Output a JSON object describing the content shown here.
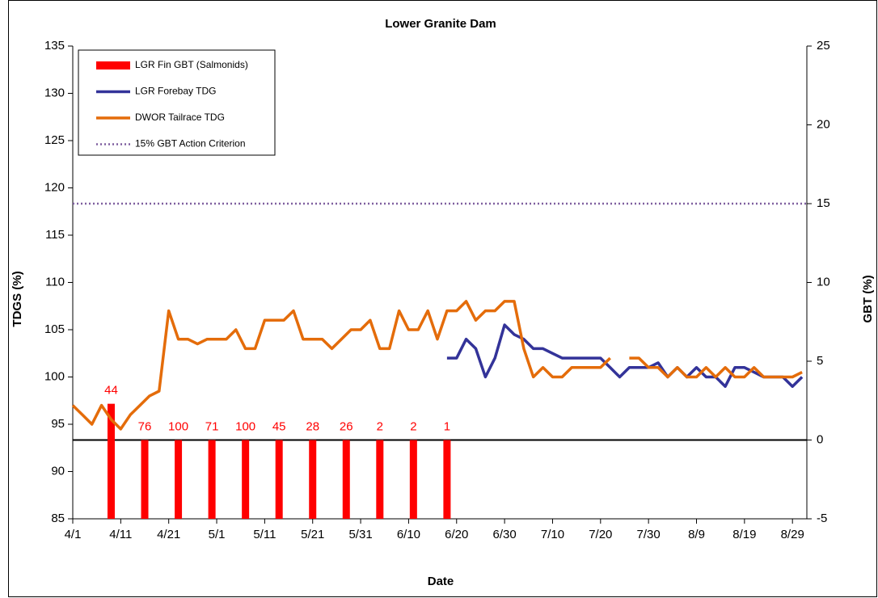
{
  "chart_data": {
    "type": "line",
    "title": "Lower Granite Dam",
    "xlabel": "Date",
    "ylabel": "TDGS (%)",
    "y2label": "GBT (%)",
    "x": [
      "4/1",
      "4/3",
      "4/5",
      "4/7",
      "4/9",
      "4/11",
      "4/13",
      "4/15",
      "4/17",
      "4/19",
      "4/21",
      "4/23",
      "4/25",
      "4/27",
      "4/29",
      "5/1",
      "5/3",
      "5/5",
      "5/7",
      "5/9",
      "5/11",
      "5/13",
      "5/15",
      "5/17",
      "5/19",
      "5/21",
      "5/23",
      "5/25",
      "5/27",
      "5/29",
      "5/31",
      "6/2",
      "6/4",
      "6/6",
      "6/8",
      "6/10",
      "6/12",
      "6/14",
      "6/16",
      "6/18",
      "6/20",
      "6/22",
      "6/24",
      "6/26",
      "6/28",
      "6/30",
      "7/2",
      "7/4",
      "7/6",
      "7/8",
      "7/10",
      "7/12",
      "7/14",
      "7/16",
      "7/18",
      "7/20",
      "7/22",
      "7/24",
      "7/26",
      "7/28",
      "7/30",
      "8/1",
      "8/3",
      "8/5",
      "8/7",
      "8/9",
      "8/11",
      "8/13",
      "8/15",
      "8/17",
      "8/19",
      "8/21",
      "8/23",
      "8/25",
      "8/27",
      "8/29",
      "8/31"
    ],
    "xlim": [
      "4/1",
      "9/1"
    ],
    "xticks": [
      "4/1",
      "4/11",
      "4/21",
      "5/1",
      "5/11",
      "5/21",
      "5/31",
      "6/10",
      "6/20",
      "6/30",
      "7/10",
      "7/20",
      "7/30",
      "8/9",
      "8/19",
      "8/29"
    ],
    "ylim": [
      85,
      135
    ],
    "yticks": [
      85,
      90,
      95,
      100,
      105,
      110,
      115,
      120,
      125,
      130,
      135
    ],
    "y2lim": [
      -5,
      25
    ],
    "y2ticks": [
      -5,
      0,
      5,
      10,
      15,
      20,
      25
    ],
    "legend": "upper left",
    "series": [
      {
        "name": "LGR Fin GBT (Salmonids)",
        "type": "bar",
        "axis": "y2",
        "color": "#ff0000",
        "x": [
          "4/9",
          "4/16",
          "4/23",
          "4/30",
          "5/7",
          "5/14",
          "5/21",
          "5/28",
          "6/4",
          "6/11",
          "6/18"
        ],
        "values": [
          2.3,
          0,
          0,
          0,
          0,
          0,
          0,
          0,
          0,
          0,
          0
        ],
        "sample_sizes": [
          44,
          76,
          100,
          71,
          100,
          45,
          28,
          26,
          2,
          2,
          1
        ]
      },
      {
        "name": "LGR Forebay TDG",
        "type": "line",
        "color": "#333399",
        "values": [
          null,
          null,
          null,
          null,
          null,
          null,
          null,
          null,
          null,
          null,
          null,
          null,
          null,
          null,
          null,
          null,
          null,
          null,
          null,
          null,
          null,
          null,
          null,
          null,
          null,
          null,
          null,
          null,
          null,
          null,
          null,
          null,
          null,
          null,
          null,
          null,
          null,
          null,
          null,
          102,
          102,
          104,
          103,
          100,
          102,
          105.5,
          104.5,
          104,
          103,
          103,
          102.5,
          102,
          102,
          102,
          102,
          102,
          101,
          100,
          101,
          101,
          101,
          101.5,
          100,
          101,
          100,
          101,
          100,
          100,
          99,
          101,
          101,
          100.5,
          100,
          100,
          100,
          99,
          100
        ]
      },
      {
        "name": "DWOR Tailrace TDG",
        "type": "line",
        "color": "#e46c0a",
        "values": [
          97,
          96,
          95,
          97,
          95.5,
          94.5,
          96,
          97,
          98,
          98.5,
          107,
          104,
          104,
          103.5,
          104,
          104,
          104,
          105,
          103,
          103,
          106,
          106,
          106,
          107,
          104,
          104,
          104,
          103,
          104,
          105,
          105,
          106,
          103,
          103,
          107,
          105,
          105,
          107,
          104,
          107,
          107,
          108,
          106,
          107,
          107,
          108,
          108,
          103,
          100,
          101,
          100,
          100,
          101,
          101,
          101,
          101,
          102,
          null,
          102,
          102,
          101,
          101,
          100,
          101,
          100,
          100,
          101,
          100,
          101,
          100,
          100,
          101,
          100,
          100,
          100,
          100,
          100.5
        ]
      },
      {
        "name": "15% GBT Action Criterion",
        "type": "hline",
        "axis": "y2",
        "color": "#7f5f9f",
        "dash": "dotted",
        "value": 15
      }
    ]
  }
}
